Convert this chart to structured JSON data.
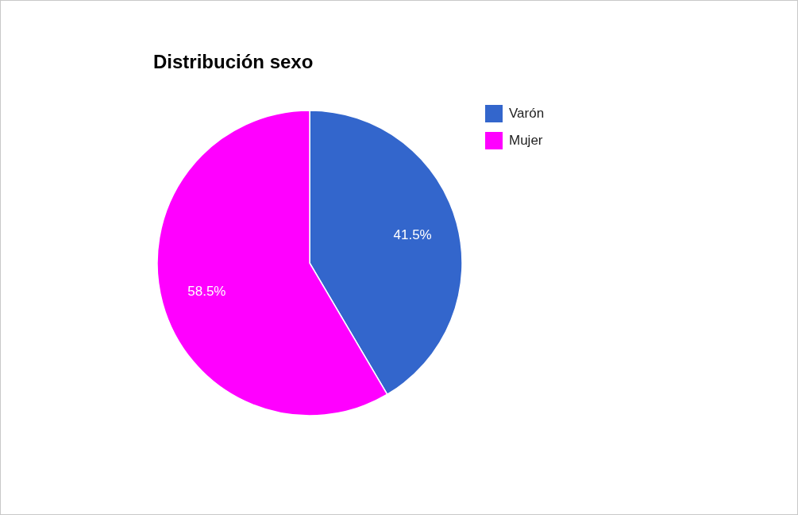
{
  "chart_data": {
    "type": "pie",
    "title": "Distribución sexo",
    "categories": [
      "Varón",
      "Mujer"
    ],
    "values": [
      41.5,
      58.5
    ],
    "colors": [
      "#3366cc",
      "#ff00ff"
    ],
    "value_labels": [
      "41.5%",
      "58.5%"
    ],
    "legend": "top right"
  }
}
